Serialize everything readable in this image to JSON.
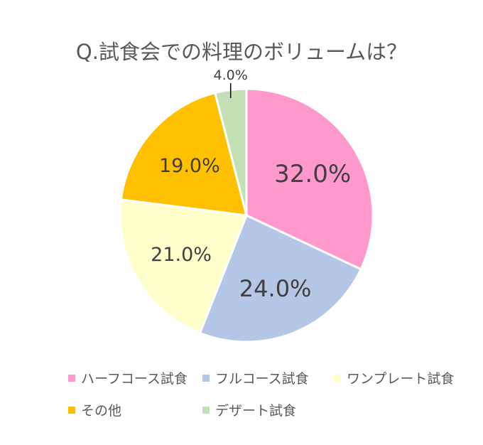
{
  "chart_data": {
    "type": "pie",
    "title": "Q.試食会での料理のボリュームは？",
    "categories": [
      "ハーフコース試食",
      "フルコース試食",
      "ワンプレート試食",
      "その他",
      "デザート試食"
    ],
    "values": [
      32.0,
      24.0,
      21.0,
      19.0,
      4.0
    ],
    "labels": [
      "32.0%",
      "24.0%",
      "21.0%",
      "19.0%",
      "4.0%"
    ],
    "colors": [
      "#FF99CC",
      "#B4C7E7",
      "#FFFFCC",
      "#FFC000",
      "#C5E0B4"
    ],
    "start": "top",
    "direction": "clockwise",
    "legend_position": "bottom"
  }
}
